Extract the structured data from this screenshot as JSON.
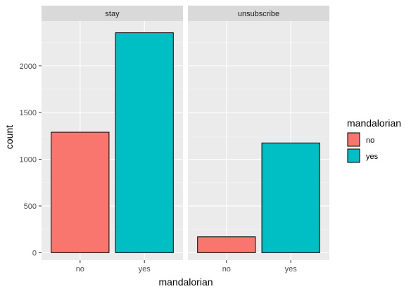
{
  "chart_data": {
    "type": "bar",
    "facet_variable": "",
    "facets": [
      "stay",
      "unsubscribe"
    ],
    "categories": [
      "no",
      "yes"
    ],
    "series": [
      {
        "name": "no",
        "color": "#F8766D"
      },
      {
        "name": "yes",
        "color": "#00BFC4"
      }
    ],
    "values": {
      "stay": [
        1290,
        2355
      ],
      "unsubscribe": [
        170,
        1175
      ]
    },
    "xlabel": "mandalorian",
    "ylabel": "count",
    "ylim": [
      -80,
      2480
    ],
    "yticks": [
      0,
      500,
      1000,
      1500,
      2000
    ],
    "legend": {
      "title": "mandalorian",
      "position": "right"
    },
    "grid": true,
    "theme": "ggplot2 grey"
  }
}
